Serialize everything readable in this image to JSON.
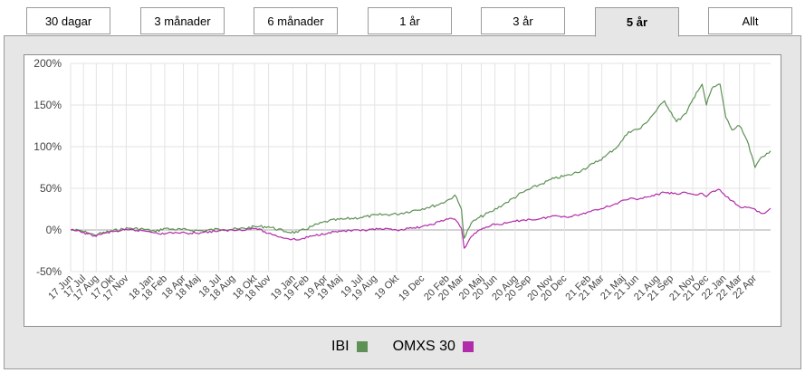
{
  "tabs": [
    {
      "label": "30 dagar",
      "active": false
    },
    {
      "label": "3 månader",
      "active": false
    },
    {
      "label": "6 månader",
      "active": false
    },
    {
      "label": "1 år",
      "active": false
    },
    {
      "label": "3 år",
      "active": false
    },
    {
      "label": "5 år",
      "active": true
    },
    {
      "label": "Allt",
      "active": false
    }
  ],
  "chart_data": {
    "type": "line",
    "title": "",
    "xlabel": "",
    "ylabel": "",
    "ylim": [
      -50,
      200
    ],
    "yticks": [
      "200%",
      "150%",
      "100%",
      "50%",
      "0%",
      "-50%"
    ],
    "ytick_values": [
      200,
      150,
      100,
      50,
      0,
      -50
    ],
    "grid": true,
    "legend_position": "bottom",
    "x_tick_labels": [
      "17 Jun",
      "17 Jul",
      "17 Aug",
      "17 Okt",
      "17 Nov",
      "18 Jan",
      "18 Feb",
      "18 Apr",
      "18 Maj",
      "18 Jul",
      "18 Aug",
      "18 Okt",
      "18 Nov",
      "19 Jan",
      "19 Feb",
      "19 Apr",
      "19 Maj",
      "19 Jul",
      "19 Aug",
      "19 Okt",
      "19 Dec",
      "20 Feb",
      "20 Mar",
      "20 Maj",
      "20 Jun",
      "20 Aug",
      "20 Sep",
      "20 Nov",
      "20 Dec",
      "21 Feb",
      "21 Mar",
      "21 Maj",
      "21 Jun",
      "21 Aug",
      "21 Sep",
      "21 Nov",
      "21 Dec",
      "22 Jan",
      "22 Mar",
      "22 Apr"
    ],
    "x_tick_dates": [
      "2017-06-15",
      "2017-07-18",
      "2017-08-20",
      "2017-10-01",
      "2017-11-05",
      "2018-01-08",
      "2018-02-12",
      "2018-04-01",
      "2018-05-08",
      "2018-07-01",
      "2018-08-06",
      "2018-10-01",
      "2018-11-06",
      "2019-01-08",
      "2019-02-12",
      "2019-04-01",
      "2019-05-08",
      "2019-07-01",
      "2019-08-06",
      "2019-10-01",
      "2019-12-06",
      "2020-02-08",
      "2020-03-16",
      "2020-05-06",
      "2020-06-10",
      "2020-08-01",
      "2020-09-05",
      "2020-11-01",
      "2020-12-06",
      "2021-02-06",
      "2021-03-12",
      "2021-05-05",
      "2021-06-09",
      "2021-08-01",
      "2021-09-06",
      "2021-11-01",
      "2021-12-06",
      "2022-01-20",
      "2022-03-01",
      "2022-04-08"
    ],
    "x": [
      "2017-06-15",
      "2017-07-10",
      "2017-08-15",
      "2017-10-01",
      "2017-11-10",
      "2017-12-20",
      "2018-01-20",
      "2018-02-10",
      "2018-03-01",
      "2018-04-10",
      "2018-05-20",
      "2018-07-01",
      "2018-08-20",
      "2018-10-05",
      "2018-11-05",
      "2018-12-20",
      "2019-01-20",
      "2019-03-01",
      "2019-04-10",
      "2019-05-20",
      "2019-07-01",
      "2019-08-15",
      "2019-10-01",
      "2019-11-10",
      "2019-12-20",
      "2020-01-20",
      "2020-02-15",
      "2020-02-28",
      "2020-03-16",
      "2020-03-23",
      "2020-04-10",
      "2020-05-01",
      "2020-06-01",
      "2020-07-10",
      "2020-08-20",
      "2020-10-01",
      "2020-11-10",
      "2020-12-20",
      "2021-01-20",
      "2021-02-20",
      "2021-03-20",
      "2021-04-25",
      "2021-05-20",
      "2021-06-20",
      "2021-07-15",
      "2021-08-20",
      "2021-09-20",
      "2021-10-15",
      "2021-11-10",
      "2021-11-25",
      "2021-12-06",
      "2021-12-20",
      "2022-01-10",
      "2022-01-25",
      "2022-02-10",
      "2022-03-01",
      "2022-03-20",
      "2022-04-10",
      "2022-04-25",
      "2022-05-10",
      "2022-05-20"
    ],
    "series": [
      {
        "name": "IBI",
        "color": "#5e9155",
        "values": [
          0,
          -1,
          -6,
          -1,
          2,
          1,
          -2,
          2,
          1,
          0,
          -1,
          1,
          1,
          4,
          4,
          -2,
          -3,
          5,
          11,
          13,
          15,
          18,
          19,
          23,
          27,
          31,
          37,
          42,
          25,
          -10,
          8,
          15,
          22,
          33,
          45,
          54,
          62,
          66,
          72,
          80,
          88,
          102,
          118,
          122,
          135,
          155,
          130,
          140,
          165,
          175,
          150,
          170,
          175,
          135,
          120,
          125,
          108,
          75,
          87,
          92,
          95
        ]
      },
      {
        "name": "OMXS 30",
        "color": "#b12ca8",
        "values": [
          0,
          -2,
          -7,
          -2,
          0,
          -1,
          -3,
          -5,
          -3,
          -4,
          -3,
          -1,
          0,
          2,
          -4,
          -10,
          -12,
          -7,
          -3,
          -1,
          -1,
          1,
          0,
          2,
          5,
          10,
          14,
          13,
          2,
          -22,
          -8,
          0,
          6,
          8,
          12,
          13,
          17,
          16,
          19,
          24,
          27,
          33,
          37,
          38,
          40,
          45,
          43,
          45,
          42,
          44,
          40,
          46,
          48,
          40,
          35,
          28,
          27,
          25,
          20,
          22,
          26
        ]
      }
    ]
  }
}
